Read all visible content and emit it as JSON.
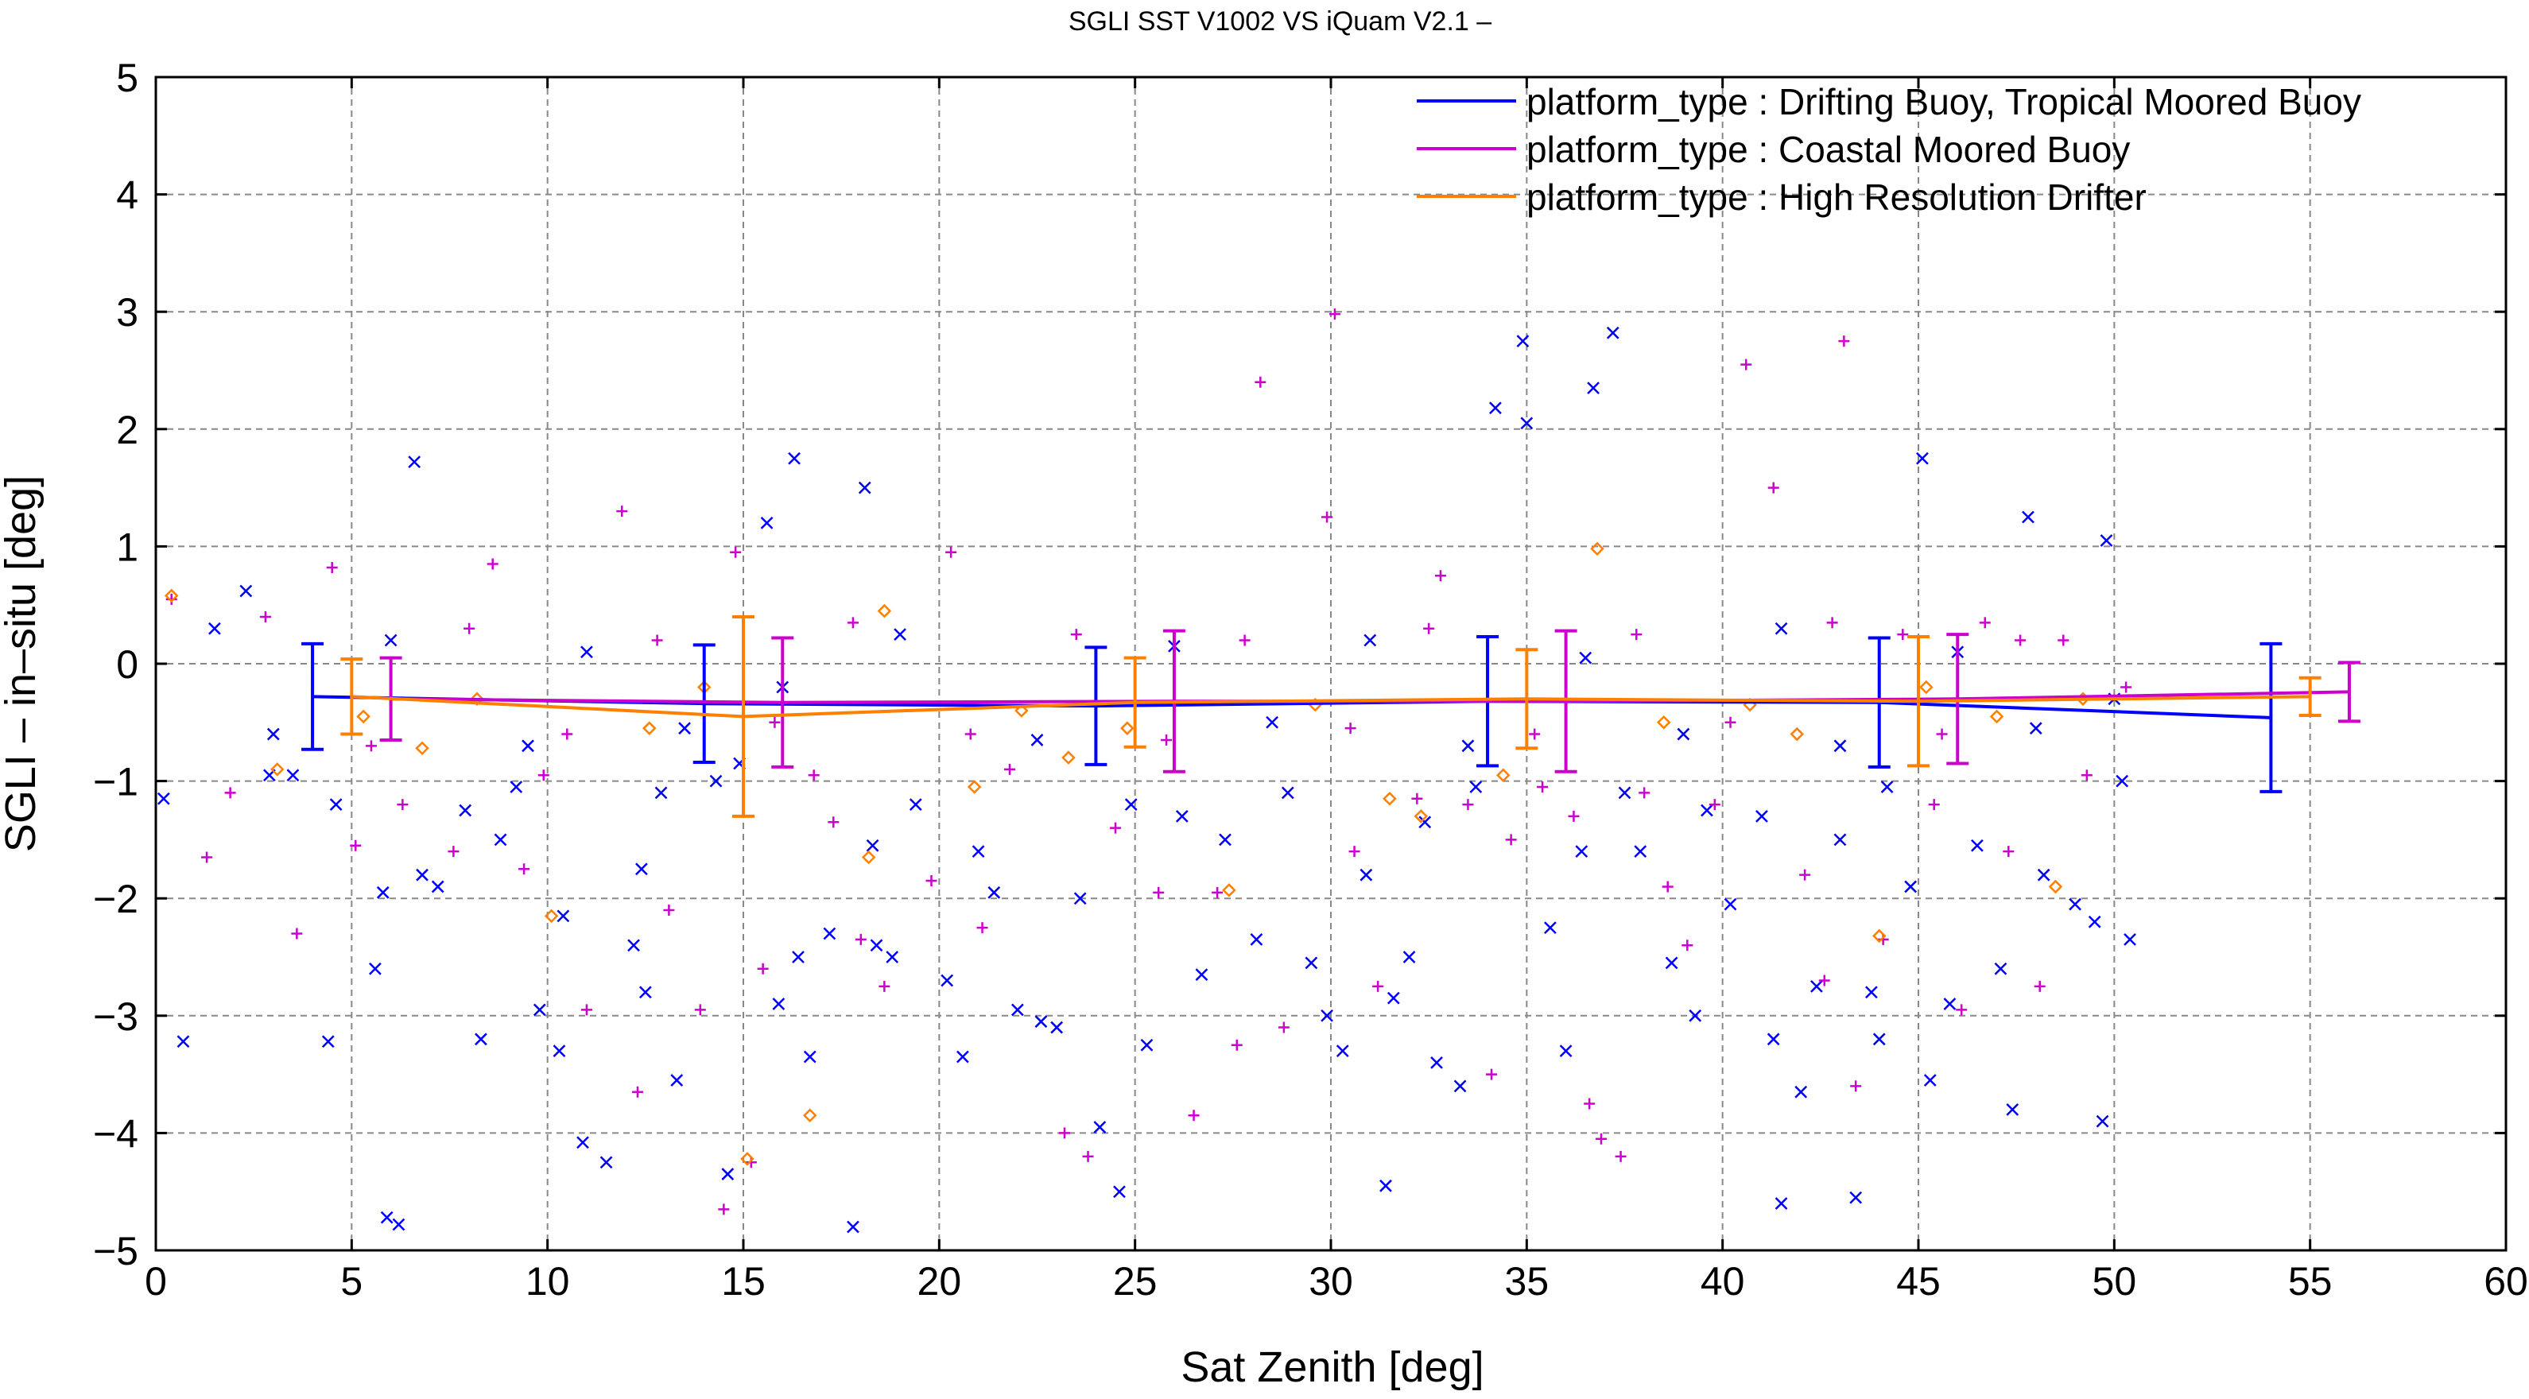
{
  "chart_data": {
    "type": "scatter",
    "title": "SGLI SST V1002 VS iQuam V2.1  –",
    "xlabel": "Sat Zenith [deg]",
    "ylabel": "SGLI – in–situ [deg]",
    "xlim": [
      0,
      60
    ],
    "ylim": [
      -5,
      5
    ],
    "x_ticks": [
      0,
      5,
      10,
      15,
      20,
      25,
      30,
      35,
      40,
      45,
      50,
      55,
      60
    ],
    "y_ticks": [
      -5,
      -4,
      -3,
      -2,
      -1,
      0,
      1,
      2,
      3,
      4,
      5
    ],
    "x_tick_labels": [
      "0",
      "5",
      "10",
      "15",
      "20",
      "25",
      "30",
      "35",
      "40",
      "45",
      "50",
      "55",
      "60"
    ],
    "y_tick_labels": [
      "−5",
      "−4",
      "−3",
      "−2",
      "−1",
      "0",
      "1",
      "2",
      "3",
      "4",
      "5"
    ],
    "grid": true,
    "legend_position": "top-right",
    "series": [
      {
        "name": "platform_type : Drifting Buoy, Tropical Moored Buoy",
        "color": "#0000ff",
        "marker": "x",
        "mean_line": {
          "x": [
            4,
            14,
            24,
            34,
            44,
            54
          ],
          "y": [
            -0.28,
            -0.34,
            -0.36,
            -0.32,
            -0.33,
            -0.46
          ],
          "err": [
            0.45,
            0.5,
            0.5,
            0.55,
            0.55,
            0.63
          ]
        },
        "points": [
          [
            0.2,
            -1.15
          ],
          [
            0.7,
            -3.22
          ],
          [
            2.3,
            0.62
          ],
          [
            2.9,
            -0.95
          ],
          [
            4.4,
            -3.22
          ],
          [
            4.6,
            -1.2
          ],
          [
            5.6,
            -2.6
          ],
          [
            5.8,
            -1.95
          ],
          [
            5.9,
            -4.72
          ],
          [
            6.2,
            -4.78
          ],
          [
            6.6,
            1.72
          ],
          [
            6.8,
            -1.8
          ],
          [
            7.2,
            -1.9
          ],
          [
            7.9,
            -1.25
          ],
          [
            8.3,
            -3.2
          ],
          [
            9.2,
            -1.05
          ],
          [
            9.8,
            -2.95
          ],
          [
            10.3,
            -3.3
          ],
          [
            10.4,
            -2.15
          ],
          [
            10.9,
            -4.08
          ],
          [
            11.5,
            -4.25
          ],
          [
            12.2,
            -2.4
          ],
          [
            12.4,
            -1.75
          ],
          [
            12.9,
            -1.1
          ],
          [
            13.3,
            -3.55
          ],
          [
            14.3,
            -1.0
          ],
          [
            14.6,
            -4.35
          ],
          [
            14.9,
            -0.85
          ],
          [
            15.6,
            1.2
          ],
          [
            15.9,
            -2.9
          ],
          [
            16.3,
            1.75
          ],
          [
            16.4,
            -2.5
          ],
          [
            16.7,
            -3.35
          ],
          [
            17.2,
            -2.3
          ],
          [
            17.8,
            -4.8
          ],
          [
            18.1,
            1.5
          ],
          [
            18.3,
            -1.55
          ],
          [
            18.4,
            -2.4
          ],
          [
            18.8,
            -2.5
          ],
          [
            19.4,
            -1.2
          ],
          [
            20.2,
            -2.7
          ],
          [
            20.6,
            -3.35
          ],
          [
            21.4,
            -1.95
          ],
          [
            22.0,
            -2.95
          ],
          [
            22.6,
            -3.05
          ],
          [
            23.0,
            -3.1
          ],
          [
            23.6,
            -2.0
          ],
          [
            24.1,
            -3.95
          ],
          [
            24.6,
            -4.5
          ],
          [
            24.9,
            -1.2
          ],
          [
            25.3,
            -3.25
          ],
          [
            26.2,
            -1.3
          ],
          [
            26.7,
            -2.65
          ],
          [
            27.3,
            -1.5
          ],
          [
            28.1,
            -2.35
          ],
          [
            28.9,
            -1.1
          ],
          [
            29.5,
            -2.55
          ],
          [
            30.3,
            -3.3
          ],
          [
            30.9,
            -1.8
          ],
          [
            31.4,
            -4.45
          ],
          [
            31.6,
            -2.85
          ],
          [
            32.0,
            -2.5
          ],
          [
            32.4,
            -1.35
          ],
          [
            32.7,
            -3.4
          ],
          [
            33.3,
            -3.6
          ],
          [
            33.7,
            -1.05
          ],
          [
            34.2,
            2.18
          ],
          [
            34.9,
            2.75
          ],
          [
            35.0,
            2.05
          ],
          [
            35.6,
            -2.25
          ],
          [
            36.0,
            -3.3
          ],
          [
            36.4,
            -1.6
          ],
          [
            36.7,
            2.35
          ],
          [
            37.2,
            2.82
          ],
          [
            37.5,
            -1.1
          ],
          [
            37.9,
            -1.6
          ],
          [
            38.7,
            -2.55
          ],
          [
            39.3,
            -3.0
          ],
          [
            39.6,
            -1.25
          ],
          [
            40.2,
            -2.05
          ],
          [
            41.0,
            -1.3
          ],
          [
            41.3,
            -3.2
          ],
          [
            41.5,
            -4.6
          ],
          [
            42.0,
            -3.65
          ],
          [
            42.4,
            -2.75
          ],
          [
            43.0,
            -1.5
          ],
          [
            43.4,
            -4.55
          ],
          [
            43.8,
            -2.8
          ],
          [
            44.0,
            -3.2
          ],
          [
            44.2,
            -1.05
          ],
          [
            44.8,
            -1.9
          ],
          [
            45.1,
            1.75
          ],
          [
            45.3,
            -3.55
          ],
          [
            45.8,
            -2.9
          ],
          [
            46.5,
            -1.55
          ],
          [
            47.1,
            -2.6
          ],
          [
            47.4,
            -3.8
          ],
          [
            47.8,
            1.25
          ],
          [
            48.2,
            -1.8
          ],
          [
            49.0,
            -2.05
          ],
          [
            49.5,
            -2.2
          ],
          [
            49.7,
            -3.9
          ],
          [
            50.2,
            -1.0
          ],
          [
            49.8,
            1.05
          ],
          [
            50.4,
            -2.35
          ],
          [
            3.5,
            -0.95
          ],
          [
            8.8,
            -1.5
          ],
          [
            12.5,
            -2.8
          ],
          [
            21.0,
            -1.6
          ],
          [
            29.9,
            -3.0
          ],
          [
            1.5,
            0.3
          ],
          [
            3.0,
            -0.6
          ],
          [
            6.0,
            0.2
          ],
          [
            9.5,
            -0.7
          ],
          [
            11.0,
            0.1
          ],
          [
            13.5,
            -0.55
          ],
          [
            16.0,
            -0.2
          ],
          [
            19.0,
            0.25
          ],
          [
            22.5,
            -0.65
          ],
          [
            26.0,
            0.15
          ],
          [
            28.5,
            -0.5
          ],
          [
            31.0,
            0.2
          ],
          [
            33.5,
            -0.7
          ],
          [
            36.5,
            0.05
          ],
          [
            39.0,
            -0.6
          ],
          [
            41.5,
            0.3
          ],
          [
            43.0,
            -0.7
          ],
          [
            46.0,
            0.1
          ],
          [
            48.0,
            -0.55
          ],
          [
            50.0,
            -0.3
          ]
        ]
      },
      {
        "name": "platform_type : Coastal Moored Buoy",
        "color": "#cc00cc",
        "marker": "+",
        "mean_line": {
          "x": [
            6,
            16,
            26,
            36,
            46,
            56
          ],
          "y": [
            -0.3,
            -0.33,
            -0.32,
            -0.32,
            -0.3,
            -0.24
          ],
          "err": [
            0.35,
            0.55,
            0.6,
            0.6,
            0.55,
            0.25
          ]
        },
        "points": [
          [
            0.4,
            0.55
          ],
          [
            1.3,
            -1.65
          ],
          [
            1.9,
            -1.1
          ],
          [
            3.6,
            -2.3
          ],
          [
            4.5,
            0.82
          ],
          [
            5.1,
            -1.55
          ],
          [
            6.3,
            -1.2
          ],
          [
            7.6,
            -1.6
          ],
          [
            8.6,
            0.85
          ],
          [
            9.4,
            -1.75
          ],
          [
            9.9,
            -0.95
          ],
          [
            11.0,
            -2.95
          ],
          [
            11.9,
            1.3
          ],
          [
            12.3,
            -3.65
          ],
          [
            13.1,
            -2.1
          ],
          [
            13.9,
            -2.95
          ],
          [
            14.5,
            -4.65
          ],
          [
            14.8,
            0.95
          ],
          [
            15.2,
            -4.25
          ],
          [
            15.5,
            -2.6
          ],
          [
            16.8,
            -0.95
          ],
          [
            17.3,
            -1.35
          ],
          [
            18.0,
            -2.35
          ],
          [
            18.6,
            -2.75
          ],
          [
            19.8,
            -1.85
          ],
          [
            20.3,
            0.95
          ],
          [
            21.1,
            -2.25
          ],
          [
            21.8,
            -0.9
          ],
          [
            23.2,
            -4.0
          ],
          [
            23.8,
            -4.2
          ],
          [
            24.5,
            -1.4
          ],
          [
            25.6,
            -1.95
          ],
          [
            26.5,
            -3.85
          ],
          [
            27.1,
            -1.95
          ],
          [
            27.6,
            -3.25
          ],
          [
            28.2,
            2.4
          ],
          [
            28.8,
            -3.1
          ],
          [
            29.9,
            1.25
          ],
          [
            30.1,
            2.98
          ],
          [
            30.6,
            -1.6
          ],
          [
            31.2,
            -2.75
          ],
          [
            32.2,
            -1.15
          ],
          [
            32.8,
            0.75
          ],
          [
            33.5,
            -1.2
          ],
          [
            34.1,
            -3.5
          ],
          [
            34.6,
            -1.5
          ],
          [
            35.4,
            -1.05
          ],
          [
            36.2,
            -1.3
          ],
          [
            36.6,
            -3.75
          ],
          [
            36.9,
            -4.05
          ],
          [
            37.4,
            -4.2
          ],
          [
            38.0,
            -1.1
          ],
          [
            38.6,
            -1.9
          ],
          [
            39.1,
            -2.4
          ],
          [
            39.8,
            -1.2
          ],
          [
            40.6,
            2.55
          ],
          [
            41.3,
            1.5
          ],
          [
            42.1,
            -1.8
          ],
          [
            42.6,
            -2.7
          ],
          [
            43.1,
            2.75
          ],
          [
            43.4,
            -3.6
          ],
          [
            44.1,
            -2.35
          ],
          [
            44.6,
            0.25
          ],
          [
            45.4,
            -1.2
          ],
          [
            46.1,
            -2.95
          ],
          [
            46.7,
            0.35
          ],
          [
            47.3,
            -1.6
          ],
          [
            48.1,
            -2.75
          ],
          [
            48.7,
            0.2
          ],
          [
            49.3,
            -0.95
          ],
          [
            2.8,
            0.4
          ],
          [
            5.5,
            -0.7
          ],
          [
            8.0,
            0.3
          ],
          [
            10.5,
            -0.6
          ],
          [
            12.8,
            0.2
          ],
          [
            15.8,
            -0.5
          ],
          [
            17.8,
            0.35
          ],
          [
            20.8,
            -0.6
          ],
          [
            23.5,
            0.25
          ],
          [
            25.8,
            -0.65
          ],
          [
            27.8,
            0.2
          ],
          [
            30.5,
            -0.55
          ],
          [
            32.5,
            0.3
          ],
          [
            35.2,
            -0.6
          ],
          [
            37.8,
            0.25
          ],
          [
            40.2,
            -0.5
          ],
          [
            42.8,
            0.35
          ],
          [
            45.6,
            -0.6
          ],
          [
            47.6,
            0.2
          ],
          [
            50.3,
            -0.2
          ]
        ]
      },
      {
        "name": "platform_type : High Resolution Drifter",
        "color": "#ff8000",
        "marker": "diamond",
        "mean_line": {
          "x": [
            5,
            15,
            25,
            35,
            45,
            55
          ],
          "y": [
            -0.28,
            -0.45,
            -0.33,
            -0.3,
            -0.32,
            -0.28
          ],
          "err": [
            0.32,
            0.85,
            0.38,
            0.42,
            0.55,
            0.16
          ]
        },
        "points": [
          [
            0.4,
            0.58
          ],
          [
            3.1,
            -0.9
          ],
          [
            5.3,
            -0.45
          ],
          [
            6.8,
            -0.72
          ],
          [
            8.2,
            -0.3
          ],
          [
            10.1,
            -2.15
          ],
          [
            12.6,
            -0.55
          ],
          [
            15.1,
            -4.22
          ],
          [
            16.7,
            -3.85
          ],
          [
            18.2,
            -1.65
          ],
          [
            18.6,
            0.45
          ],
          [
            20.9,
            -1.05
          ],
          [
            23.3,
            -0.8
          ],
          [
            24.8,
            -0.55
          ],
          [
            27.4,
            -1.93
          ],
          [
            29.6,
            -0.35
          ],
          [
            31.5,
            -1.15
          ],
          [
            32.3,
            -1.3
          ],
          [
            34.4,
            -0.95
          ],
          [
            36.8,
            0.98
          ],
          [
            38.5,
            -0.5
          ],
          [
            40.7,
            -0.35
          ],
          [
            41.9,
            -0.6
          ],
          [
            44.0,
            -2.32
          ],
          [
            45.2,
            -0.2
          ],
          [
            47.0,
            -0.45
          ],
          [
            48.5,
            -1.9
          ],
          [
            49.2,
            -0.3
          ],
          [
            14.0,
            -0.2
          ],
          [
            22.1,
            -0.4
          ]
        ]
      }
    ]
  }
}
